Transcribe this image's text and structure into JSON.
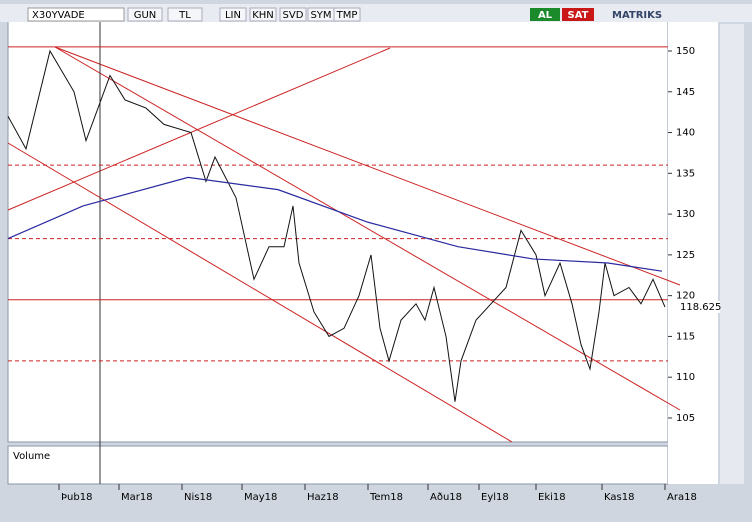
{
  "toolbar": {
    "symbol": "X30YVADE",
    "buttons": [
      "GUN",
      "TL",
      "LIN",
      "KHN",
      "SVD",
      "SYM",
      "TMP"
    ],
    "buy": "AL",
    "sell": "SAT",
    "brand": "MATRIKS"
  },
  "chart_data": {
    "type": "line",
    "xlim": [
      0,
      220
    ],
    "ylim": [
      102.3,
      153.8
    ],
    "xticks": [
      {
        "value": 17,
        "label": "Þub18"
      },
      {
        "value": 37,
        "label": "Mar18"
      },
      {
        "value": 58,
        "label": "Nis18"
      },
      {
        "value": 78,
        "label": "May18"
      },
      {
        "value": 99,
        "label": "Haz18"
      },
      {
        "value": 120,
        "label": "Tem18"
      },
      {
        "value": 140,
        "label": "Aðu18"
      },
      {
        "value": 157,
        "label": "Eyl18"
      },
      {
        "value": 176,
        "label": "Eki18"
      },
      {
        "value": 198,
        "label": "Kas18"
      },
      {
        "value": 219,
        "label": "Ara18"
      }
    ],
    "yticks": [
      105,
      110,
      115,
      120,
      125,
      130,
      135,
      140,
      145,
      150
    ],
    "series": [
      {
        "color": "#111111",
        "x": [
          0,
          6,
          14,
          22,
          26,
          34,
          39,
          46,
          52,
          61,
          66,
          69,
          76,
          79,
          82,
          87,
          92,
          95,
          97,
          102,
          107,
          112,
          117,
          121,
          124,
          127,
          131,
          136,
          139,
          142,
          146,
          149,
          151,
          156,
          161,
          166,
          171,
          176,
          179,
          184,
          188,
          191,
          194,
          197,
          199,
          202,
          207,
          211,
          215,
          219
        ],
        "values": [
          142,
          138,
          150,
          145,
          139,
          147,
          144,
          143,
          141,
          140,
          134,
          137,
          132,
          127,
          122,
          126,
          126,
          131,
          124,
          118,
          115,
          116,
          120,
          125,
          116,
          112,
          117,
          119,
          117,
          121,
          115,
          107,
          112,
          117,
          119,
          121,
          128,
          125,
          120,
          124,
          119,
          114,
          111,
          118,
          124,
          120,
          121,
          119,
          122,
          118.6
        ]
      },
      {
        "color": "#2a2aa0",
        "x": [
          0,
          25,
          60,
          90,
          120,
          150,
          175,
          200,
          218
        ],
        "values": [
          127,
          131,
          134.5,
          133,
          129,
          126,
          124.5,
          124,
          123
        ]
      }
    ],
    "solid_lines": [
      150.5,
      119.5
    ],
    "dashed_lines": [
      136,
      127,
      112
    ],
    "line_color": "#cc2222",
    "last_price": 118.625,
    "volume_label": "Volume"
  }
}
